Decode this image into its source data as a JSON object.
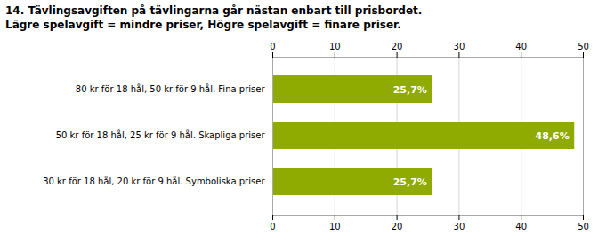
{
  "chart_data": {
    "type": "bar",
    "orientation": "horizontal",
    "title": "14. Tävlingsavgiften på tävlingarna går nästan enbart till prisbordet.",
    "subtitle": "Lägre spelavgift = mindre priser, Högre spelavgift = finare priser.",
    "categories": [
      "80 kr för 18 hål, 50 kr för 9 hål. Fina priser",
      "50 kr för 18 hål, 25 kr för 9 hål. Skapliga priser",
      "30 kr för 18 hål, 20 kr för 9 hål. Symboliska priser"
    ],
    "values": [
      25.7,
      48.6,
      25.7
    ],
    "value_labels": [
      "25,7%",
      "48,6%",
      "25,7%"
    ],
    "data_labels": true,
    "color": "#8faa00",
    "xlim": [
      0,
      50
    ],
    "xticks": [
      0,
      10,
      20,
      30,
      40,
      50
    ],
    "grid": true
  }
}
